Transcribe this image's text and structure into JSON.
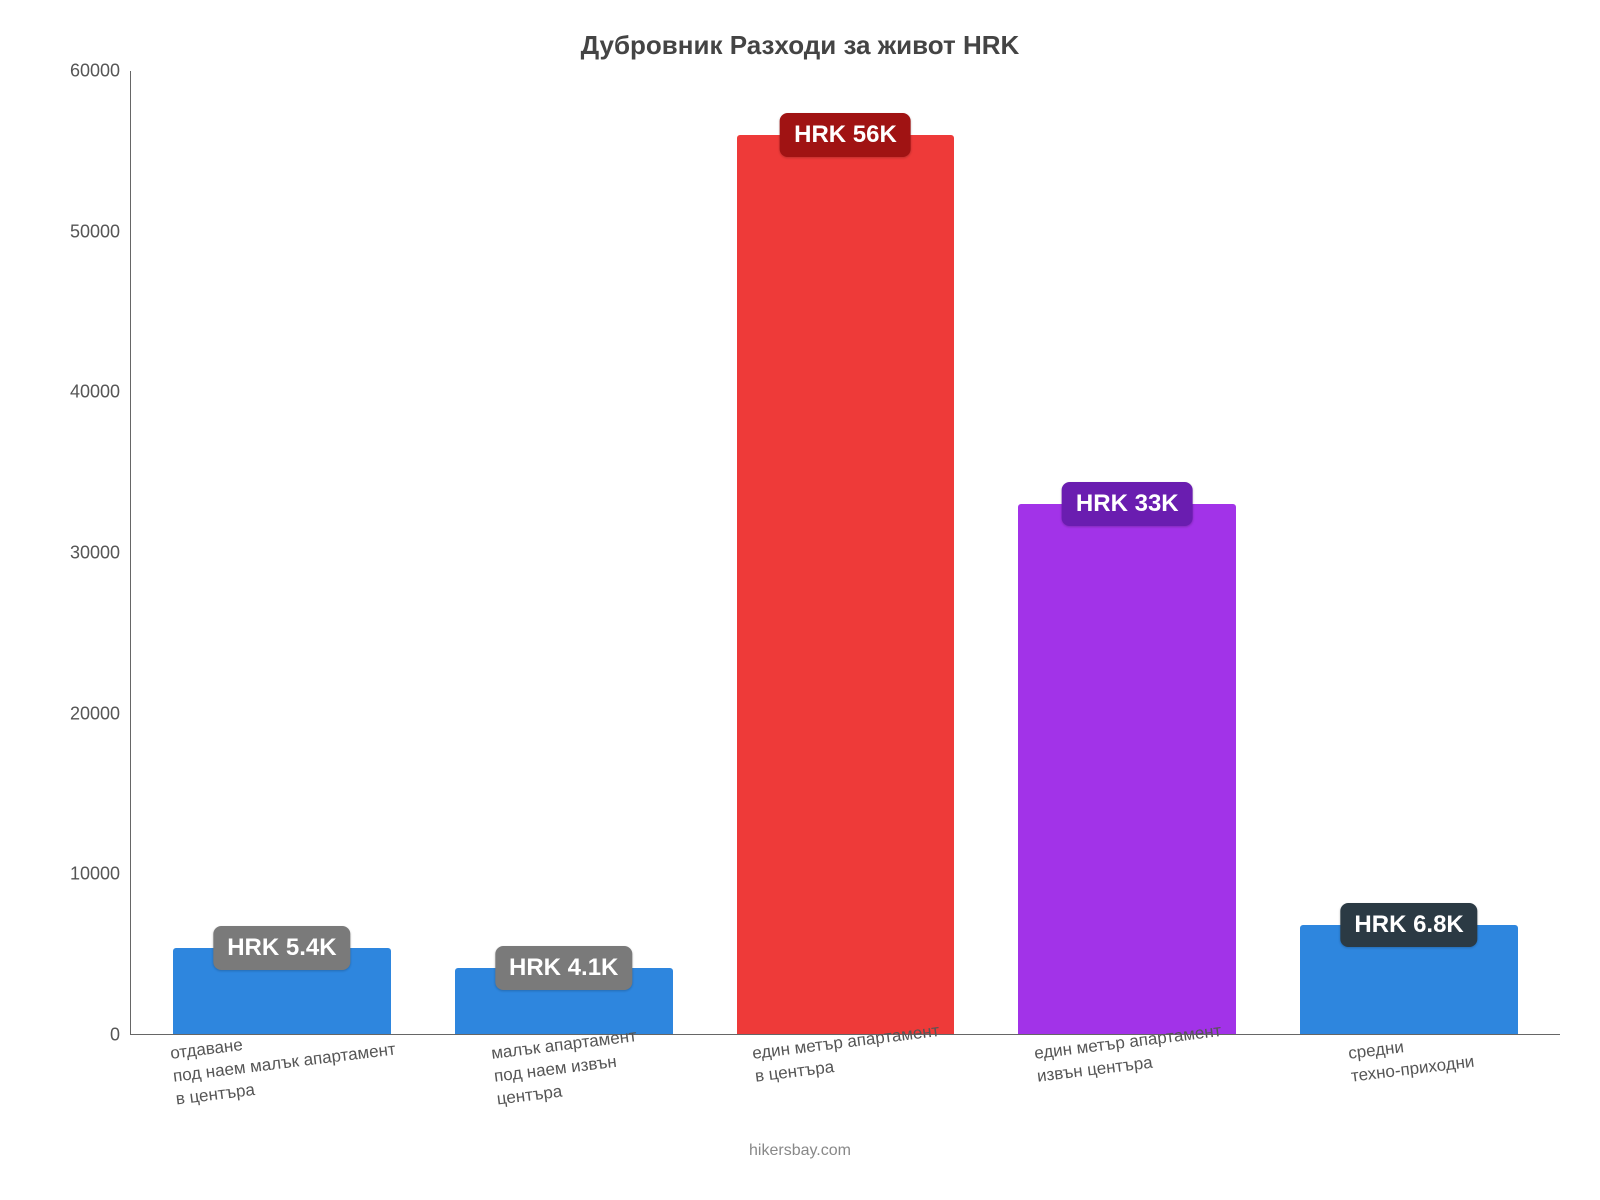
{
  "chart": {
    "type": "bar",
    "title": "Дубровник Разходи за живот HRK",
    "title_fontsize": 26,
    "title_color": "#444444",
    "background_color": "#ffffff",
    "axis_color": "#666666",
    "tick_label_color": "#555555",
    "tick_fontsize": 18,
    "xlabel_fontsize": 17,
    "xlabel_rotation_deg": -7,
    "bar_width_ratio": 0.82,
    "ylim": [
      0,
      60000
    ],
    "ytick_step": 10000,
    "yticks": [
      "0",
      "10000",
      "20000",
      "30000",
      "40000",
      "50000",
      "60000"
    ],
    "categories": [
      "отдаване\nпод наем малък апартамент\nв центъра",
      "малък апартамент\nпод наем извън\nцентъра",
      "един метър апартамент\nв центъра",
      "един метър апартамент\nизвън центъра",
      "средни\nтехно-приходни"
    ],
    "values": [
      5400,
      4100,
      56000,
      33000,
      6800
    ],
    "bar_colors": [
      "#2e86de",
      "#2e86de",
      "#ee3a39",
      "#a233e8",
      "#2e86de"
    ],
    "value_labels": [
      "HRK 5.4K",
      "HRK 4.1K",
      "HRK 56K",
      "HRK 33K",
      "HRK 6.8K"
    ],
    "value_label_bg": [
      "#7a7a7a",
      "#7a7a7a",
      "#a01313",
      "#6a1db0",
      "#2b3a44"
    ],
    "value_label_fontsize": 24,
    "value_label_color": "#ffffff",
    "attribution": "hikersbay.com",
    "attribution_fontsize": 16,
    "attribution_color": "#888888"
  }
}
